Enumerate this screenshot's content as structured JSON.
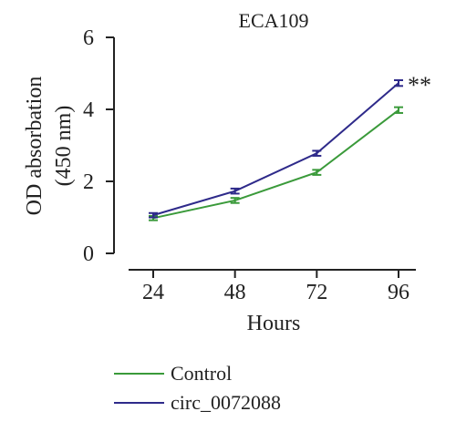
{
  "chart_data": {
    "type": "line",
    "title": "ECA109",
    "xlabel": "Hours",
    "ylabel_line1": "OD absorbation",
    "ylabel_line2": "(450 nm)",
    "x": [
      24,
      48,
      72,
      96
    ],
    "x_tick_labels": [
      "24",
      "48",
      "72",
      "96"
    ],
    "ylim": [
      0,
      6
    ],
    "y_ticks": [
      0,
      2,
      4,
      6
    ],
    "y_tick_labels": [
      "0",
      "2",
      "4",
      "6"
    ],
    "series": [
      {
        "name": "Control",
        "color": "#3a9a3a",
        "values": [
          0.98,
          1.47,
          2.25,
          3.98
        ],
        "errors": [
          0.06,
          0.07,
          0.07,
          0.08
        ]
      },
      {
        "name": "circ_0072088",
        "color": "#2e2a8a",
        "values": [
          1.06,
          1.73,
          2.78,
          4.73
        ],
        "errors": [
          0.06,
          0.07,
          0.07,
          0.08
        ]
      }
    ],
    "annotation": "**",
    "grid": false,
    "legend_position": "bottom"
  }
}
